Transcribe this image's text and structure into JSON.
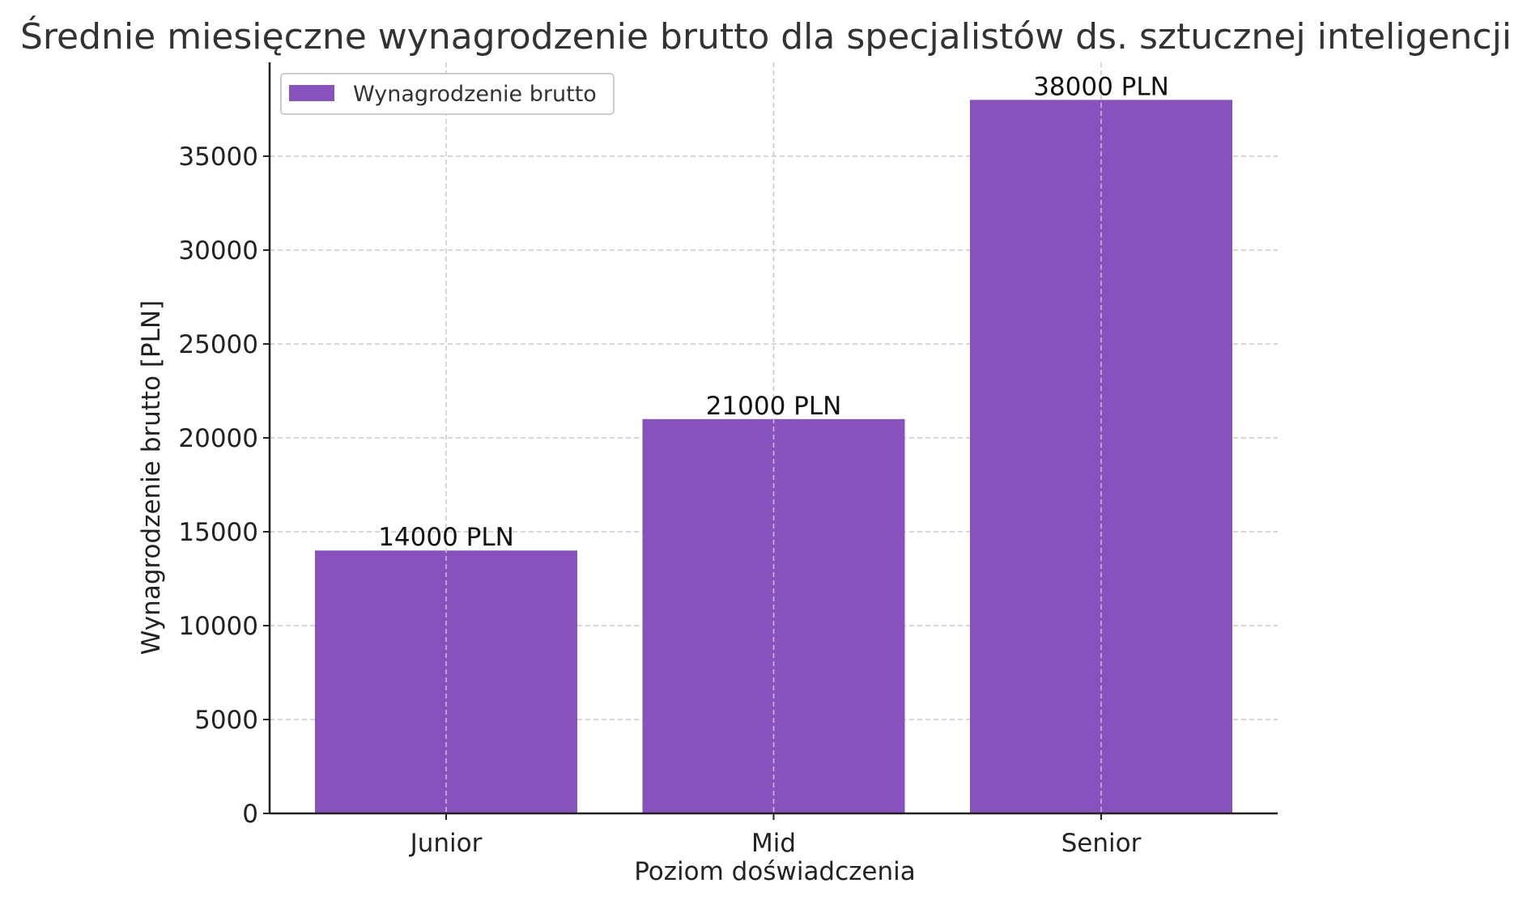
{
  "chart_data": {
    "type": "bar",
    "title": "Średnie miesięczne wynagrodzenie brutto dla specjalistów ds. sztucznej inteligencji",
    "xlabel": "Poziom doświadczenia",
    "ylabel": "Wynagrodzenie brutto [PLN]",
    "categories": [
      "Junior",
      "Mid",
      "Senior"
    ],
    "series": [
      {
        "name": "Wynagrodzenie brutto",
        "values": [
          14000,
          21000,
          38000
        ],
        "color": "#8852BE"
      }
    ],
    "data_labels": [
      "14000 PLN",
      "21000 PLN",
      "38000 PLN"
    ],
    "ylim": [
      0,
      40000
    ],
    "yticks": [
      0,
      5000,
      10000,
      15000,
      20000,
      25000,
      30000,
      35000
    ],
    "ytick_labels": [
      "0",
      "5000",
      "10000",
      "15000",
      "20000",
      "25000",
      "30000",
      "35000"
    ],
    "grid": true,
    "legend_position": "top-left"
  }
}
